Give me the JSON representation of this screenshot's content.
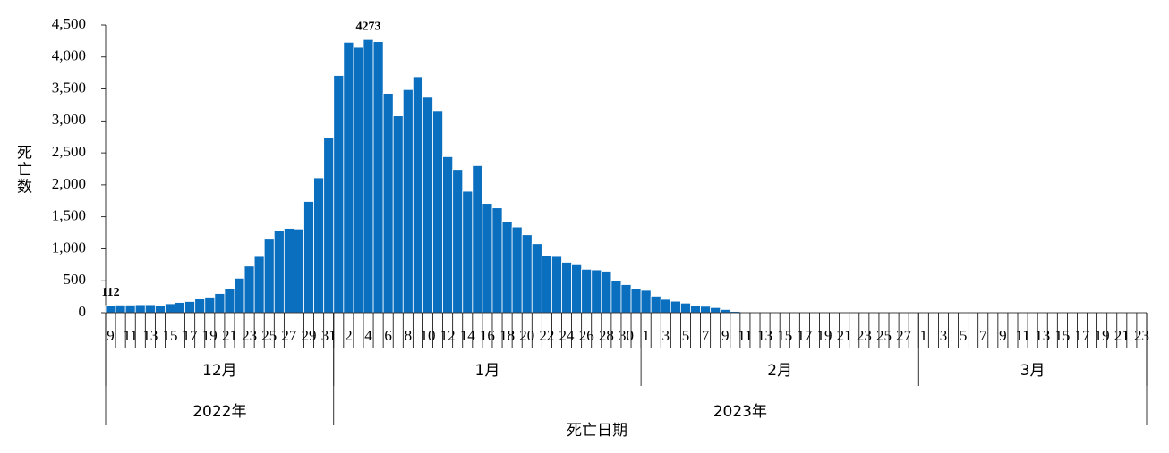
{
  "chart_data": {
    "type": "bar",
    "y_label": "死亡数",
    "x_label": "死亡日期",
    "categories": [
      "9",
      null,
      "11",
      null,
      "13",
      null,
      "15",
      null,
      "17",
      null,
      "19",
      null,
      "21",
      null,
      "23",
      null,
      "25",
      null,
      "27",
      null,
      "29",
      null,
      "31",
      null,
      "2",
      null,
      "4",
      null,
      "6",
      null,
      "8",
      null,
      "10",
      null,
      "12",
      null,
      "14",
      null,
      "16",
      null,
      "18",
      null,
      "20",
      null,
      "22",
      null,
      "24",
      null,
      "26",
      null,
      "28",
      null,
      "30",
      null,
      "1",
      null,
      "3",
      null,
      "5",
      null,
      "7",
      null,
      "9",
      null,
      "11",
      null,
      "13",
      null,
      "15",
      null,
      "17",
      null,
      "19",
      null,
      "21",
      null,
      "23",
      null,
      "25",
      null,
      "27",
      null,
      "1",
      null,
      "3",
      null,
      "5",
      null,
      "7",
      null,
      "9",
      null,
      "11",
      null,
      "13",
      null,
      "15",
      null,
      "17",
      null,
      "19",
      null,
      "21",
      null,
      "23"
    ],
    "values": [
      112,
      120,
      120,
      125,
      125,
      115,
      140,
      160,
      175,
      215,
      245,
      300,
      375,
      540,
      730,
      880,
      1150,
      1290,
      1320,
      1310,
      1740,
      2110,
      2740,
      3710,
      4230,
      4150,
      4273,
      4240,
      3430,
      3080,
      3490,
      3690,
      3370,
      3160,
      2440,
      2240,
      1900,
      2300,
      1710,
      1640,
      1430,
      1340,
      1220,
      1080,
      890,
      880,
      790,
      750,
      680,
      670,
      650,
      500,
      440,
      380,
      350,
      260,
      210,
      180,
      150,
      110,
      100,
      80,
      50,
      20,
      0,
      0,
      0,
      0,
      0,
      0,
      0,
      0,
      0,
      0,
      0,
      0,
      0,
      0,
      0,
      0,
      0,
      0,
      0,
      0,
      0,
      0,
      0,
      0,
      0,
      0,
      0,
      0,
      0,
      0,
      0,
      0,
      0,
      0,
      0,
      0,
      0,
      0,
      0,
      0,
      0
    ],
    "value_labels": [
      "112",
      null,
      null,
      null,
      null,
      null,
      null,
      null,
      null,
      null,
      null,
      null,
      null,
      null,
      null,
      null,
      null,
      null,
      null,
      null,
      null,
      null,
      null,
      null,
      null,
      null,
      "4273",
      null,
      null,
      null,
      null,
      null,
      null,
      null,
      null,
      null,
      null,
      null,
      null,
      null,
      null,
      null,
      null,
      null,
      null,
      null,
      null,
      null,
      null,
      null,
      null,
      null,
      null,
      null,
      null,
      null,
      null,
      null,
      null,
      null,
      null,
      null,
      null,
      null,
      null,
      null,
      null,
      null,
      null,
      null,
      null,
      null,
      null,
      null,
      null,
      null,
      null,
      null,
      null,
      null,
      null,
      null,
      null,
      null,
      null,
      null,
      null,
      null,
      null,
      null,
      null,
      null,
      null,
      null,
      null,
      null,
      null,
      null,
      null,
      null,
      null,
      null,
      null,
      null,
      null
    ],
    "color": "#0b6fc0",
    "months": [
      {
        "label": "12月",
        "days": 23
      },
      {
        "label": "1月",
        "days": 31
      },
      {
        "label": "2月",
        "days": 28
      },
      {
        "label": "3月",
        "days": 23
      }
    ],
    "years": [
      {
        "label": "2022年",
        "months": 1
      },
      {
        "label": "2023年",
        "months": 3
      }
    ],
    "ylim": [
      0,
      4500
    ],
    "yticks": [
      0,
      500,
      {
        "value": 1000,
        "label": "1,000"
      },
      {
        "value": 1500,
        "label": "1,500"
      },
      {
        "value": 2000,
        "label": "2,000"
      },
      {
        "value": 2500,
        "label": "2,500"
      },
      {
        "value": 3000,
        "label": "3,000"
      },
      {
        "value": 3500,
        "label": "3,500"
      },
      {
        "value": 4000,
        "label": "4,000"
      },
      {
        "value": 4500,
        "label": "4,500"
      }
    ],
    "grid": false
  }
}
